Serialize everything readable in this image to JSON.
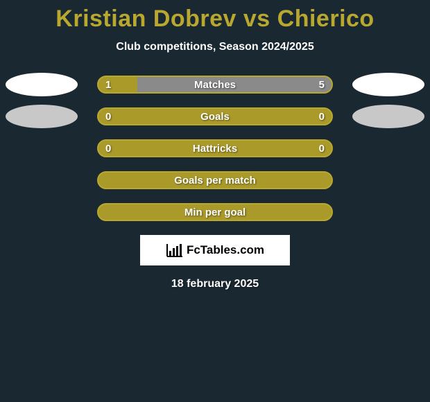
{
  "title": "Kristian Dobrev vs Chierico",
  "subtitle": "Club competitions, Season 2024/2025",
  "accent_color": "#b8a830",
  "accent_fill": "#aa9a2a",
  "grey_fill": "#8a8a8a",
  "background_color": "#1a2832",
  "ellipse_white": "#ffffff",
  "ellipse_grey": "#c8c8c8",
  "rows": [
    {
      "label": "Matches",
      "left_val": "1",
      "right_val": "5",
      "left_pct": 16.67,
      "right_pct": 83.33,
      "show_ellipses": true,
      "ellipse_left_color": "#ffffff",
      "ellipse_right_color": "#ffffff",
      "bar_bg": "#aa9a2a",
      "border_color": "#b8a830",
      "center_fill": "#8a8a8a"
    },
    {
      "label": "Goals",
      "left_val": "0",
      "right_val": "0",
      "left_pct": 50,
      "right_pct": 50,
      "show_ellipses": true,
      "ellipse_left_color": "#c8c8c8",
      "ellipse_right_color": "#c8c8c8",
      "bar_bg": "#aa9a2a",
      "border_color": "#b8a830",
      "center_fill": "none"
    },
    {
      "label": "Hattricks",
      "left_val": "0",
      "right_val": "0",
      "left_pct": 50,
      "right_pct": 50,
      "show_ellipses": false,
      "bar_bg": "#aa9a2a",
      "border_color": "#b8a830",
      "center_fill": "none"
    },
    {
      "label": "Goals per match",
      "left_val": "",
      "right_val": "",
      "left_pct": 50,
      "right_pct": 50,
      "show_ellipses": false,
      "bar_bg": "#aa9a2a",
      "border_color": "#b8a830",
      "center_fill": "none"
    },
    {
      "label": "Min per goal",
      "left_val": "",
      "right_val": "",
      "left_pct": 50,
      "right_pct": 50,
      "show_ellipses": false,
      "bar_bg": "#aa9a2a",
      "border_color": "#b8a830",
      "center_fill": "none"
    }
  ],
  "logo_text": "FcTables.com",
  "date": "18 february 2025"
}
